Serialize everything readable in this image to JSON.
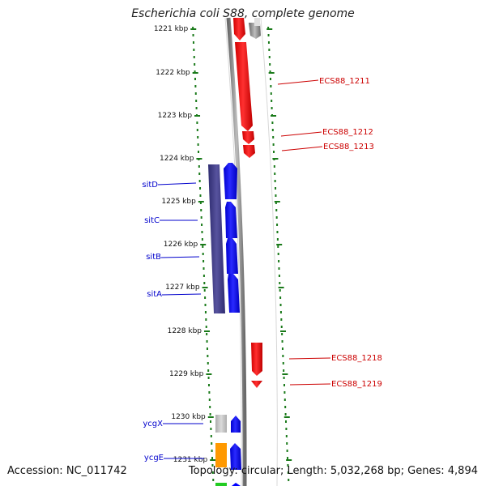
{
  "title": "Escherichia coli S88, complete genome",
  "footer": {
    "accession": "Accession: NC_011742",
    "summary": "Topology: circular; Length: 5,032,268 bp; Genes: 4,894"
  },
  "ticks": [
    "1221 kbp",
    "1222 kbp",
    "1223 kbp",
    "1224 kbp",
    "1225 kbp",
    "1226 kbp",
    "1227 kbp",
    "1228 kbp",
    "1229 kbp",
    "1230 kbp",
    "1231 kbp"
  ],
  "left_labels": [
    {
      "text": "sitD",
      "color": "#0000cc"
    },
    {
      "text": "sitC",
      "color": "#0000cc"
    },
    {
      "text": "sitB",
      "color": "#0000cc"
    },
    {
      "text": "sitA",
      "color": "#0000cc"
    },
    {
      "text": "ycgX",
      "color": "#0000cc"
    },
    {
      "text": "ycgE",
      "color": "#0000cc"
    }
  ],
  "right_labels": [
    {
      "text": "ECS88_1211",
      "color": "#cc0000"
    },
    {
      "text": "ECS88_1212",
      "color": "#cc0000"
    },
    {
      "text": "ECS88_1213",
      "color": "#cc0000"
    },
    {
      "text": "ECS88_1218",
      "color": "#cc0000"
    },
    {
      "text": "ECS88_1219",
      "color": "#cc0000"
    }
  ],
  "colors": {
    "tick_green": "#1a7a1a",
    "forward_red": "#ff0000",
    "blue_gene": "#0000ff",
    "operon_purple": "#3d3a8a",
    "backbone_gray": "#8a8a8a",
    "orange_gene": "#ff9900",
    "light_gray_gene": "#c8c8c8"
  }
}
